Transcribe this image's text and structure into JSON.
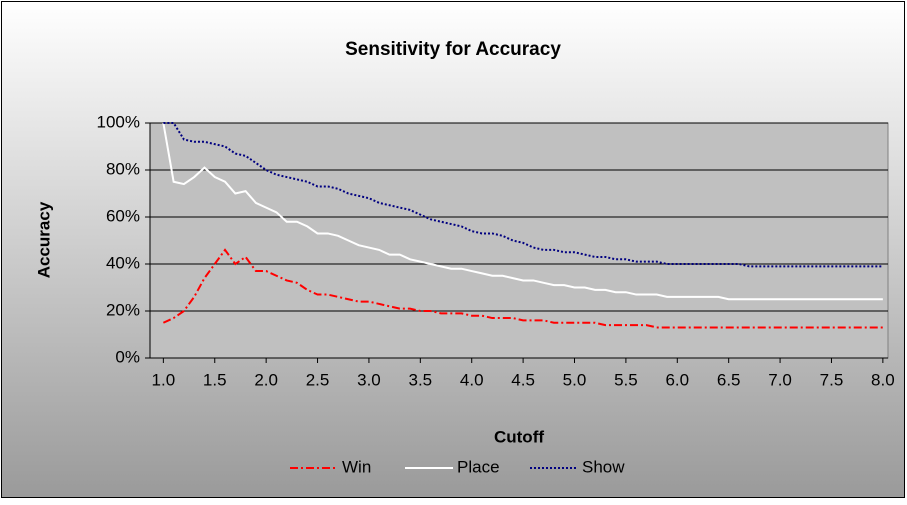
{
  "chart_data": {
    "type": "line",
    "title": "Sensitivity for Accuracy",
    "x_label": "Cutoff",
    "y_label": "Accuracy",
    "x": [
      1,
      1.1,
      1.2,
      1.3,
      1.4,
      1.5,
      1.6,
      1.7,
      1.8,
      1.9,
      2,
      2.1,
      2.2,
      2.3,
      2.4,
      2.5,
      2.6,
      2.7,
      2.8,
      2.9,
      3,
      3.1,
      3.2,
      3.3,
      3.4,
      3.5,
      3.6,
      3.7,
      3.8,
      3.9,
      4,
      4.1,
      4.2,
      4.3,
      4.4,
      4.5,
      4.6,
      4.7,
      4.8,
      4.9,
      5,
      5.1,
      5.2,
      5.3,
      5.4,
      5.5,
      5.6,
      5.7,
      5.8,
      5.9,
      6,
      6.1,
      6.2,
      6.3,
      6.4,
      6.5,
      6.6,
      6.7,
      6.8,
      6.9,
      7,
      7.1,
      7.2,
      7.3,
      7.4,
      7.5,
      7.6,
      7.7,
      7.8,
      7.9,
      8
    ],
    "series": [
      {
        "name": "Win",
        "color": "#ff0000",
        "dash": "8 3 2 3",
        "values": [
          15,
          17,
          20,
          26,
          34,
          40,
          46,
          40,
          43,
          37,
          37,
          35,
          33,
          32,
          29,
          27,
          27,
          26,
          25,
          24,
          24,
          23,
          22,
          21,
          21,
          20,
          20,
          19,
          19,
          19,
          18,
          18,
          17,
          17,
          17,
          16,
          16,
          16,
          15,
          15,
          15,
          15,
          15,
          14,
          14,
          14,
          14,
          14,
          13,
          13,
          13,
          13,
          13,
          13,
          13,
          13,
          13,
          13,
          13,
          13,
          13,
          13,
          13,
          13,
          13,
          13,
          13,
          13,
          13,
          13,
          13
        ]
      },
      {
        "name": "Place",
        "color": "#ffffff",
        "dash": "none",
        "values": [
          100,
          75,
          74,
          77,
          81,
          77,
          75,
          70,
          71,
          66,
          64,
          62,
          58,
          58,
          56,
          53,
          53,
          52,
          50,
          48,
          47,
          46,
          44,
          44,
          42,
          41,
          40,
          39,
          38,
          38,
          37,
          36,
          35,
          35,
          34,
          33,
          33,
          32,
          31,
          31,
          30,
          30,
          29,
          29,
          28,
          28,
          27,
          27,
          27,
          26,
          26,
          26,
          26,
          26,
          26,
          25,
          25,
          25,
          25,
          25,
          25,
          25,
          25,
          25,
          25,
          25,
          25,
          25,
          25,
          25,
          25
        ]
      },
      {
        "name": "Show",
        "color": "#000080",
        "dash": "2 2",
        "values": [
          100,
          100,
          93,
          92,
          92,
          91,
          90,
          87,
          86,
          83,
          80,
          78,
          77,
          76,
          75,
          73,
          73,
          72,
          70,
          69,
          68,
          66,
          65,
          64,
          63,
          61,
          59,
          58,
          57,
          56,
          54,
          53,
          53,
          52,
          50,
          49,
          47,
          46,
          46,
          45,
          45,
          44,
          43,
          43,
          42,
          42,
          41,
          41,
          41,
          40,
          40,
          40,
          40,
          40,
          40,
          40,
          40,
          39,
          39,
          39,
          39,
          39,
          39,
          39,
          39,
          39,
          39,
          39,
          39,
          39,
          39
        ]
      }
    ],
    "xlim": [
      0.87,
      8.05
    ],
    "ylim": [
      0,
      100
    ],
    "xticks": [
      {
        "value": 1,
        "label": "1.0"
      },
      {
        "value": 1.5,
        "label": "1.5"
      },
      {
        "value": 2,
        "label": "2.0"
      },
      {
        "value": 2.5,
        "label": "2.5"
      },
      {
        "value": 3,
        "label": "3.0"
      },
      {
        "value": 3.5,
        "label": "3.5"
      },
      {
        "value": 4,
        "label": "4.0"
      },
      {
        "value": 4.5,
        "label": "4.5"
      },
      {
        "value": 5,
        "label": "5.0"
      },
      {
        "value": 5.5,
        "label": "5.5"
      },
      {
        "value": 6,
        "label": "6.0"
      },
      {
        "value": 6.5,
        "label": "6.5"
      },
      {
        "value": 7,
        "label": "7.0"
      },
      {
        "value": 7.5,
        "label": "7.5"
      },
      {
        "value": 8,
        "label": "8.0"
      }
    ],
    "yticks": [
      {
        "value": 0,
        "label": "0%"
      },
      {
        "value": 20,
        "label": "20%"
      },
      {
        "value": 40,
        "label": "40%"
      },
      {
        "value": 60,
        "label": "60%"
      },
      {
        "value": 80,
        "label": "80%"
      },
      {
        "value": 100,
        "label": "100%"
      }
    ],
    "grid": true,
    "legend": "bottom"
  }
}
